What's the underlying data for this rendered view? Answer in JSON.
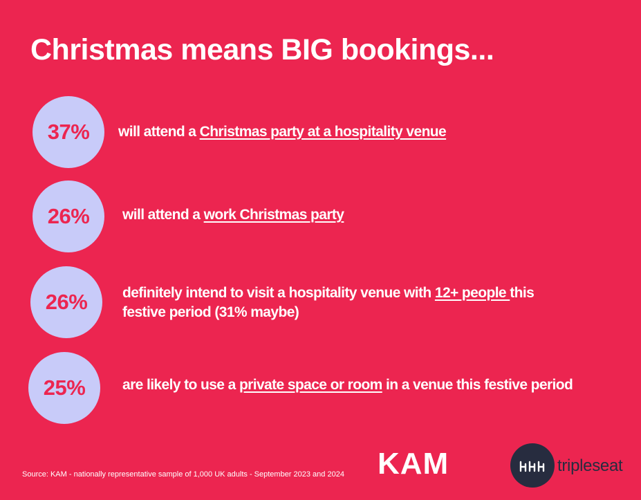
{
  "title": "Christmas means BIG bookings...",
  "stats": [
    {
      "percent": "37%",
      "pre": "will attend a ",
      "link": "Christmas party at a hospitality venue",
      "post": ""
    },
    {
      "percent": "26%",
      "pre": "will attend a ",
      "link": "work Christmas party",
      "post": ""
    },
    {
      "percent": "26%",
      "pre": "definitely intend to visit a hospitality venue with ",
      "link": "12+ people ",
      "post": "this",
      "line2": "festive period (31% maybe)"
    },
    {
      "percent": "25%",
      "pre": "are likely to use a ",
      "link": "private space or room",
      "post": " in a venue this festive period"
    }
  ],
  "footer": {
    "source": "Source: KAM  - nationally representative sample of 1,000 UK adults - September 2023  and 2024",
    "kam_logo": "KAM",
    "tripleseat_wordmark": "tripleseat",
    "tripleseat_icon": "tripleseat-logo-icon"
  },
  "colors": {
    "background": "#EC2550",
    "bubble": "#C8CBF9",
    "percent_text": "#EC2550",
    "text": "#FFFFFF",
    "logo_dark": "#272C3F"
  }
}
